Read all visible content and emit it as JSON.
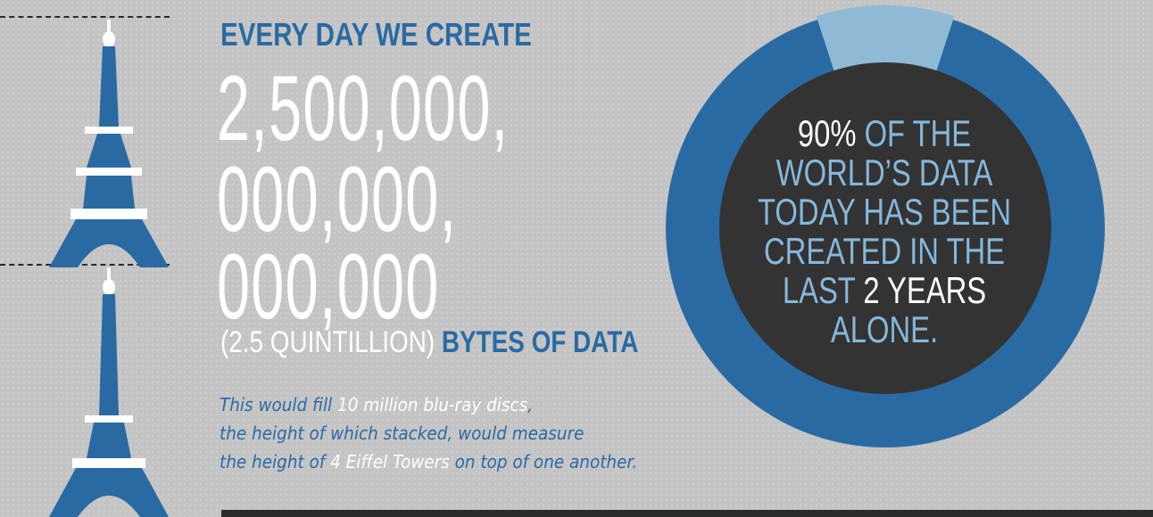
{
  "headline": "EVERY DAY WE CREATE",
  "number_lines": [
    "2,500,000,",
    "000,000,",
    "000,000"
  ],
  "sub_paren": "(2.5 QUINTILLION)",
  "sub_bytes": "BYTES OF DATA",
  "note": {
    "line1_a": "This would fill ",
    "line1_b": "10 million blu-ray discs",
    "line1_c": ",",
    "line2": "the height of which stacked, would measure",
    "line3_a": "the height of ",
    "line3_b": "4 Eiffel Towers",
    "line3_c": " on top of one another."
  },
  "stat": {
    "pct": "90%",
    "line1_rest": " OF THE",
    "line2": "WORLD’S DATA",
    "line3": "TODAY HAS BEEN",
    "line4": "CREATED IN THE",
    "line5_a": "LAST ",
    "line5_b": "2 YEARS",
    "line6": "ALONE."
  },
  "donut_data": {
    "highlight_fraction": 0.9
  },
  "colors": {
    "background": "#c4c4c4",
    "blue": "#2a6aa3",
    "light_blue": "#8fbad6",
    "dark": "#333333",
    "white": "#ffffff"
  },
  "icons": [
    "eiffel-tower-icon",
    "eiffel-tower-icon"
  ]
}
